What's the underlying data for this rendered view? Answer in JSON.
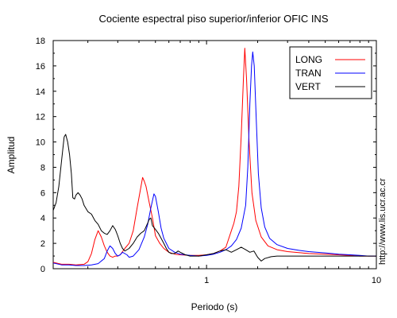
{
  "chart_data": {
    "type": "line",
    "title": "Cociente espectral piso superior/inferior  OFIC INS",
    "xlabel": "Periodo (s)",
    "ylabel": "Amplitud",
    "xscale": "log",
    "xlim": [
      0.125,
      10
    ],
    "ylim": [
      0,
      18
    ],
    "x_tick_labels": [
      "1",
      "10"
    ],
    "y_tick_labels": [
      "0",
      "2",
      "4",
      "6",
      "8",
      "10",
      "12",
      "14",
      "16",
      "18"
    ],
    "grid": false,
    "legend_position": "top-right",
    "watermark": "http://www.lis.ucr.ac.cr",
    "series": [
      {
        "name": "LONG",
        "color": "#ff0000",
        "points": [
          [
            0.125,
            0.5
          ],
          [
            0.14,
            0.35
          ],
          [
            0.155,
            0.35
          ],
          [
            0.17,
            0.3
          ],
          [
            0.19,
            0.35
          ],
          [
            0.2,
            0.55
          ],
          [
            0.21,
            1.2
          ],
          [
            0.22,
            2.3
          ],
          [
            0.23,
            3.0
          ],
          [
            0.24,
            2.5
          ],
          [
            0.25,
            1.8
          ],
          [
            0.26,
            1.3
          ],
          [
            0.27,
            1.0
          ],
          [
            0.28,
            0.9
          ],
          [
            0.29,
            1.0
          ],
          [
            0.3,
            1.0
          ],
          [
            0.31,
            1.1
          ],
          [
            0.33,
            1.6
          ],
          [
            0.35,
            2.0
          ],
          [
            0.37,
            3.0
          ],
          [
            0.39,
            4.8
          ],
          [
            0.41,
            6.4
          ],
          [
            0.42,
            7.2
          ],
          [
            0.43,
            6.9
          ],
          [
            0.44,
            6.5
          ],
          [
            0.46,
            5.2
          ],
          [
            0.48,
            4.0
          ],
          [
            0.5,
            2.6
          ],
          [
            0.53,
            2.0
          ],
          [
            0.56,
            1.6
          ],
          [
            0.6,
            1.3
          ],
          [
            0.65,
            1.15
          ],
          [
            0.7,
            1.1
          ],
          [
            0.8,
            1.05
          ],
          [
            0.9,
            1.05
          ],
          [
            1.0,
            1.1
          ],
          [
            1.1,
            1.2
          ],
          [
            1.2,
            1.4
          ],
          [
            1.3,
            1.7
          ],
          [
            1.4,
            3.0
          ],
          [
            1.45,
            3.6
          ],
          [
            1.5,
            4.5
          ],
          [
            1.55,
            6.5
          ],
          [
            1.6,
            10.5
          ],
          [
            1.65,
            15.0
          ],
          [
            1.68,
            17.4
          ],
          [
            1.72,
            15.0
          ],
          [
            1.78,
            10.0
          ],
          [
            1.85,
            6.0
          ],
          [
            1.95,
            3.8
          ],
          [
            2.1,
            2.5
          ],
          [
            2.3,
            1.8
          ],
          [
            2.6,
            1.5
          ],
          [
            3.0,
            1.35
          ],
          [
            4.0,
            1.2
          ],
          [
            5.0,
            1.15
          ],
          [
            6.0,
            1.1
          ],
          [
            7.0,
            1.05
          ],
          [
            8.0,
            1.0
          ],
          [
            9.0,
            1.0
          ],
          [
            10.0,
            1.0
          ]
        ]
      },
      {
        "name": "TRAN",
        "color": "#0000ff",
        "points": [
          [
            0.125,
            0.45
          ],
          [
            0.14,
            0.3
          ],
          [
            0.155,
            0.3
          ],
          [
            0.17,
            0.25
          ],
          [
            0.19,
            0.25
          ],
          [
            0.21,
            0.3
          ],
          [
            0.23,
            0.4
          ],
          [
            0.25,
            0.8
          ],
          [
            0.26,
            1.4
          ],
          [
            0.27,
            1.8
          ],
          [
            0.28,
            1.6
          ],
          [
            0.29,
            1.2
          ],
          [
            0.3,
            1.0
          ],
          [
            0.31,
            1.1
          ],
          [
            0.32,
            1.3
          ],
          [
            0.34,
            1.1
          ],
          [
            0.35,
            0.9
          ],
          [
            0.37,
            1.0
          ],
          [
            0.4,
            1.5
          ],
          [
            0.43,
            2.5
          ],
          [
            0.45,
            3.5
          ],
          [
            0.47,
            4.8
          ],
          [
            0.49,
            5.9
          ],
          [
            0.5,
            5.7
          ],
          [
            0.52,
            4.5
          ],
          [
            0.54,
            3.2
          ],
          [
            0.56,
            2.4
          ],
          [
            0.58,
            2.0
          ],
          [
            0.6,
            1.6
          ],
          [
            0.65,
            1.3
          ],
          [
            0.7,
            1.15
          ],
          [
            0.8,
            1.05
          ],
          [
            0.9,
            1.0
          ],
          [
            1.0,
            1.05
          ],
          [
            1.1,
            1.15
          ],
          [
            1.2,
            1.3
          ],
          [
            1.3,
            1.5
          ],
          [
            1.4,
            1.8
          ],
          [
            1.5,
            2.3
          ],
          [
            1.6,
            3.2
          ],
          [
            1.7,
            5.0
          ],
          [
            1.75,
            8.0
          ],
          [
            1.8,
            13.0
          ],
          [
            1.84,
            16.0
          ],
          [
            1.87,
            17.1
          ],
          [
            1.91,
            16.0
          ],
          [
            1.96,
            12.0
          ],
          [
            2.02,
            7.5
          ],
          [
            2.1,
            4.8
          ],
          [
            2.2,
            3.3
          ],
          [
            2.35,
            2.4
          ],
          [
            2.6,
            1.9
          ],
          [
            3.0,
            1.6
          ],
          [
            3.5,
            1.45
          ],
          [
            4.0,
            1.35
          ],
          [
            5.0,
            1.25
          ],
          [
            6.0,
            1.15
          ],
          [
            7.0,
            1.1
          ],
          [
            8.0,
            1.05
          ],
          [
            9.0,
            1.0
          ],
          [
            10.0,
            1.0
          ]
        ]
      },
      {
        "name": "VERT",
        "color": "#000000",
        "points": [
          [
            0.125,
            4.6
          ],
          [
            0.13,
            5.2
          ],
          [
            0.135,
            6.5
          ],
          [
            0.14,
            8.5
          ],
          [
            0.145,
            10.4
          ],
          [
            0.148,
            10.6
          ],
          [
            0.152,
            10.0
          ],
          [
            0.156,
            9.0
          ],
          [
            0.16,
            7.5
          ],
          [
            0.163,
            5.6
          ],
          [
            0.167,
            5.5
          ],
          [
            0.17,
            5.8
          ],
          [
            0.175,
            6.0
          ],
          [
            0.18,
            5.8
          ],
          [
            0.185,
            5.5
          ],
          [
            0.19,
            5.0
          ],
          [
            0.2,
            4.5
          ],
          [
            0.21,
            4.3
          ],
          [
            0.22,
            3.8
          ],
          [
            0.23,
            3.5
          ],
          [
            0.24,
            3.0
          ],
          [
            0.25,
            2.8
          ],
          [
            0.26,
            2.7
          ],
          [
            0.27,
            3.0
          ],
          [
            0.28,
            3.4
          ],
          [
            0.29,
            3.1
          ],
          [
            0.3,
            2.6
          ],
          [
            0.31,
            2.0
          ],
          [
            0.32,
            1.6
          ],
          [
            0.33,
            1.4
          ],
          [
            0.35,
            1.6
          ],
          [
            0.37,
            2.0
          ],
          [
            0.39,
            2.5
          ],
          [
            0.41,
            2.8
          ],
          [
            0.43,
            3.0
          ],
          [
            0.45,
            3.6
          ],
          [
            0.46,
            3.9
          ],
          [
            0.47,
            4.0
          ],
          [
            0.48,
            3.4
          ],
          [
            0.5,
            3.1
          ],
          [
            0.52,
            2.8
          ],
          [
            0.54,
            2.4
          ],
          [
            0.56,
            2.0
          ],
          [
            0.58,
            1.6
          ],
          [
            0.6,
            1.3
          ],
          [
            0.62,
            1.2
          ],
          [
            0.65,
            1.2
          ],
          [
            0.68,
            1.4
          ],
          [
            0.7,
            1.3
          ],
          [
            0.75,
            1.1
          ],
          [
            0.8,
            1.0
          ],
          [
            0.9,
            1.0
          ],
          [
            1.0,
            1.1
          ],
          [
            1.1,
            1.2
          ],
          [
            1.2,
            1.4
          ],
          [
            1.3,
            1.5
          ],
          [
            1.4,
            1.3
          ],
          [
            1.5,
            1.5
          ],
          [
            1.6,
            1.7
          ],
          [
            1.7,
            1.5
          ],
          [
            1.8,
            1.3
          ],
          [
            1.9,
            1.4
          ],
          [
            2.0,
            0.9
          ],
          [
            2.1,
            0.6
          ],
          [
            2.2,
            0.8
          ],
          [
            2.4,
            0.95
          ],
          [
            2.6,
            1.0
          ],
          [
            3.0,
            1.0
          ],
          [
            4.0,
            1.0
          ],
          [
            5.0,
            1.0
          ],
          [
            6.0,
            1.0
          ],
          [
            8.0,
            1.0
          ],
          [
            10.0,
            1.0
          ]
        ]
      }
    ]
  }
}
